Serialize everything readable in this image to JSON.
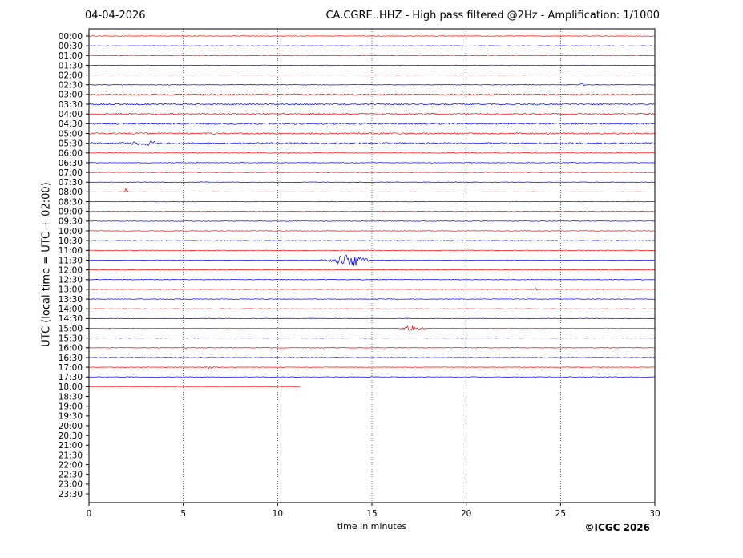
{
  "chart_data": {
    "type": "line",
    "date": "04-04-2026",
    "title": "CA.CGRE..HHZ - High pass filtered @2Hz - Amplification: 1/1000",
    "xlabel": "time in minutes",
    "ylabel": "UTC (local time = UTC + 02:00)",
    "xlim": [
      0,
      30
    ],
    "x_ticks": [
      0,
      5,
      10,
      15,
      20,
      25,
      30
    ],
    "x_grid": "vertical dotted at 5-minute intervals",
    "row_labels": [
      "00:00",
      "00:30",
      "01:00",
      "01:30",
      "02:00",
      "02:30",
      "03:00",
      "03:30",
      "04:00",
      "04:30",
      "05:00",
      "05:30",
      "06:00",
      "06:30",
      "07:00",
      "07:30",
      "08:00",
      "08:30",
      "09:00",
      "09:30",
      "10:00",
      "10:30",
      "11:00",
      "11:30",
      "12:00",
      "12:30",
      "13:00",
      "13:30",
      "14:00",
      "14:30",
      "15:00",
      "15:30",
      "16:00",
      "16:30",
      "17:00",
      "17:30",
      "18:00",
      "18:30",
      "19:00",
      "19:30",
      "20:00",
      "20:30",
      "21:00",
      "21:30",
      "22:00",
      "22:30",
      "23:00",
      "23:30"
    ],
    "trace_colors": [
      "#ff0000",
      "#0000ff"
    ],
    "traces_recorded": 37,
    "last_trace_end_minute": 11.2,
    "events": [
      {
        "row": "11:30",
        "start": 12.3,
        "peak": 14.0,
        "end": 15.0,
        "amplitude": 9
      },
      {
        "row": "15:00",
        "start": 16.3,
        "peak": 17.0,
        "end": 18.0,
        "amplitude": 3
      },
      {
        "row": "08:00",
        "start": 1.8,
        "peak": 1.95,
        "end": 2.1,
        "amplitude": 5
      },
      {
        "row": "05:30",
        "start": 0.5,
        "peak": 3.4,
        "end": 3.6,
        "amplitude": 3
      },
      {
        "row": "06:00",
        "start": 10.3,
        "peak": 10.6,
        "end": 10.8,
        "amplitude": 2
      },
      {
        "row": "13:00",
        "start": 23.6,
        "peak": 23.7,
        "end": 23.8,
        "amplitude": 3
      },
      {
        "row": "02:30",
        "start": 26.0,
        "peak": 26.1,
        "end": 26.4,
        "amplitude": 2
      },
      {
        "row": "17:00",
        "start": 5.8,
        "peak": 6.5,
        "end": 7.0,
        "amplitude": 2
      }
    ]
  },
  "copyright": "©ICGC 2026"
}
